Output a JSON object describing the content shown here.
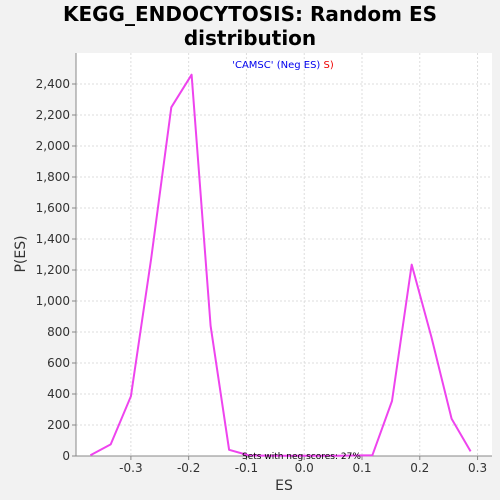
{
  "chart_data": {
    "type": "line",
    "title_lines": [
      "KEGG_ENDOCYTOSIS: Random ES",
      "distribution"
    ],
    "xlabel": "ES",
    "ylabel": "P(ES)",
    "xlim": [
      -0.395,
      0.325
    ],
    "ylim": [
      0,
      2600
    ],
    "xticks": [
      -0.3,
      -0.2,
      -0.1,
      0.0,
      0.1,
      0.2,
      0.3
    ],
    "xtick_labels": [
      "-0.3",
      "-0.2",
      "-0.1",
      "0.0",
      "0.1",
      "0.2",
      "0.3"
    ],
    "yticks": [
      0,
      200,
      400,
      600,
      800,
      1000,
      1200,
      1400,
      1600,
      1800,
      2000,
      2200,
      2400
    ],
    "ytick_labels": [
      "0",
      "200",
      "400",
      "600",
      "800",
      "1,000",
      "1,200",
      "1,400",
      "1,600",
      "1,800",
      "2,000",
      "2,200",
      "2,400"
    ],
    "grid": true,
    "legend": {
      "placement": "top-center",
      "parts": [
        {
          "text": "'CAMSC' (Neg ES)",
          "color": "#0000ee"
        },
        {
          "text": "S)",
          "color": "#ee0000"
        }
      ]
    },
    "annotation": "Sets with neg scores: 27%",
    "series": [
      {
        "color": "#ee44ee",
        "x": [
          -0.37,
          -0.335,
          -0.3,
          -0.265,
          -0.23,
          -0.195,
          -0.162,
          -0.13,
          -0.095,
          -0.06,
          -0.03,
          0.0,
          0.03,
          0.06,
          0.085,
          0.118,
          0.152,
          0.186,
          0.22,
          0.255,
          0.288
        ],
        "y": [
          5,
          75,
          385,
          1270,
          2250,
          2460,
          840,
          40,
          3,
          2,
          1,
          1,
          1,
          2,
          3,
          5,
          355,
          1235,
          770,
          240,
          30
        ]
      }
    ]
  }
}
